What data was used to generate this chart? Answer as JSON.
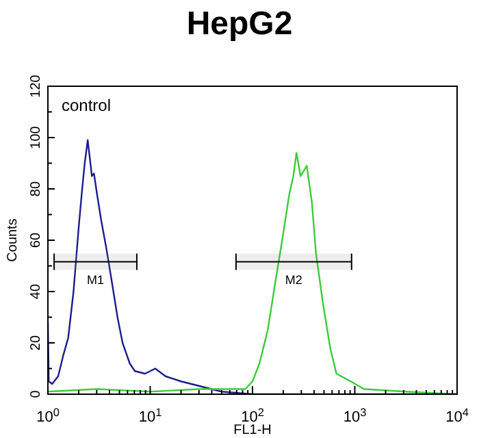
{
  "chart_data": {
    "type": "line",
    "title": "HepG2",
    "xlabel": "FL1-H",
    "ylabel": "Counts",
    "annotations": [
      "control"
    ],
    "log": "x",
    "xlim": [
      1,
      10000
    ],
    "ylim": [
      0,
      120
    ],
    "xticks": [
      {
        "value": 1,
        "label": "10$^{0}$"
      },
      {
        "value": 2,
        "label": null
      },
      {
        "value": 3,
        "label": null
      },
      {
        "value": 4,
        "label": null
      },
      {
        "value": 5,
        "label": null
      },
      {
        "value": 6,
        "label": null
      },
      {
        "value": 7,
        "label": null
      },
      {
        "value": 8,
        "label": null
      },
      {
        "value": 9,
        "label": null
      },
      {
        "value": 10,
        "label": "10$^{1}$"
      },
      {
        "value": 20,
        "label": null
      },
      {
        "value": 30,
        "label": null
      },
      {
        "value": 40,
        "label": null
      },
      {
        "value": 50,
        "label": null
      },
      {
        "value": 60,
        "label": null
      },
      {
        "value": 70,
        "label": null
      },
      {
        "value": 80,
        "label": null
      },
      {
        "value": 90,
        "label": null
      },
      {
        "value": 100,
        "label": "10$^{2}$"
      },
      {
        "value": 200,
        "label": null
      },
      {
        "value": 300,
        "label": null
      },
      {
        "value": 400,
        "label": null
      },
      {
        "value": 500,
        "label": null
      },
      {
        "value": 600,
        "label": null
      },
      {
        "value": 700,
        "label": null
      },
      {
        "value": 800,
        "label": null
      },
      {
        "value": 900,
        "label": null
      },
      {
        "value": 1000,
        "label": "10$^{3}$"
      },
      {
        "value": 2000,
        "label": null
      },
      {
        "value": 3000,
        "label": null
      },
      {
        "value": 4000,
        "label": null
      },
      {
        "value": 5000,
        "label": null
      },
      {
        "value": 6000,
        "label": null
      },
      {
        "value": 7000,
        "label": null
      },
      {
        "value": 8000,
        "label": null
      },
      {
        "value": 9000,
        "label": null
      },
      {
        "value": 10000,
        "label": "10$^{4}$"
      }
    ],
    "yticks": [
      0,
      {
        "value": 10,
        "label": null
      },
      20,
      {
        "value": 30,
        "label": null
      },
      40,
      {
        "value": 50,
        "label": null
      },
      60,
      {
        "value": 70,
        "label": null
      },
      80,
      {
        "value": 90,
        "label": null
      },
      100,
      {
        "value": 110,
        "label": null
      },
      120
    ],
    "grid": false,
    "legend": false,
    "marker": "none",
    "line_style": "solid",
    "bands": [
      {
        "axis": "x",
        "from": 1.15,
        "to": 7.4,
        "label": "M1"
      },
      {
        "axis": "x",
        "from": 69,
        "to": 930,
        "label": "M2"
      }
    ],
    "series": [
      {
        "color": "#1c1c8e",
        "x": [
          1,
          1.02,
          1.1,
          1.26,
          1.41,
          1.58,
          1.78,
          2,
          2.14,
          2.29,
          2.45,
          2.57,
          2.69,
          2.82,
          3.02,
          3.31,
          3.72,
          4.17,
          4.79,
          5.37,
          6.31,
          7.08,
          8.91,
          11.2,
          14.1,
          20,
          31.6,
          50,
          100,
          1000,
          10000
        ],
        "values": [
          28,
          5,
          4,
          7,
          15,
          22,
          40,
          65,
          78,
          90,
          99,
          92,
          85,
          86,
          78,
          68,
          57,
          45,
          30,
          20,
          12,
          9,
          8,
          10,
          7,
          5,
          3,
          1,
          0,
          0,
          0
        ]
      },
      {
        "color": "#3ccc3c",
        "x": [
          1,
          3,
          10,
          30,
          85,
          100,
          117,
          141,
          166,
          195,
          229,
          251,
          269,
          295,
          339,
          380,
          417,
          490,
          575,
          661,
          912,
          1230,
          3160,
          10000
        ],
        "values": [
          1,
          2,
          1,
          2,
          2,
          5,
          12,
          25,
          43,
          60,
          78,
          85,
          94,
          85,
          89,
          75,
          55,
          35,
          18,
          8,
          5,
          2,
          1,
          0
        ]
      }
    ]
  }
}
